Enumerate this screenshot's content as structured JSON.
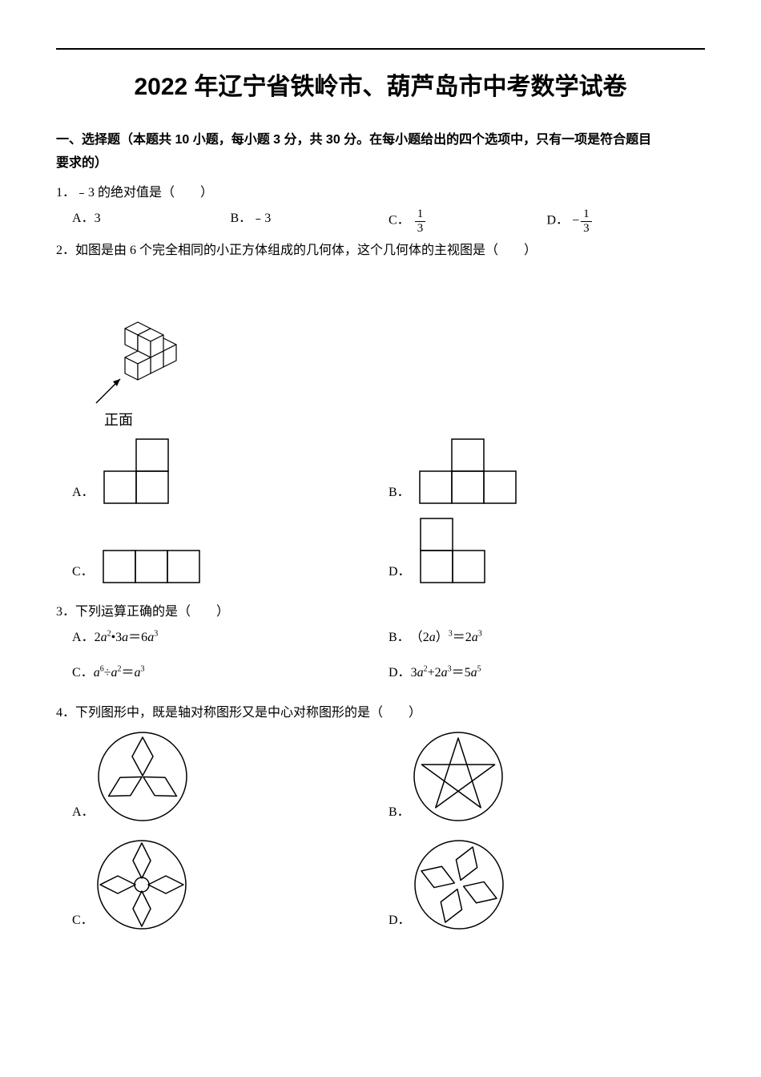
{
  "title": "2022 年辽宁省铁岭市、葫芦岛市中考数学试卷",
  "section1": {
    "heading_part1": "一、选择题（本题共 10 小题，每小题 3 分，共 30 分。在每小题给出的四个选项中，只有一项是符合题目",
    "heading_part2": "要求的）"
  },
  "q1": {
    "stem": "1．﹣3 的绝对值是（　　）",
    "A_label": "A．",
    "A_val": "3",
    "B_label": "B．",
    "B_val": "﹣3",
    "C_label": "C．",
    "C_num": "1",
    "C_den": "3",
    "D_label": "D．",
    "D_neg": "−",
    "D_num": "1",
    "D_den": "3"
  },
  "q2": {
    "stem": "2．如图是由 6 个完全相同的小正方体组成的几何体，这个几何体的主视图是（　　）",
    "front_label": "正面",
    "A": "A．",
    "B": "B．",
    "C": "C．",
    "D": "D．",
    "iso": {
      "stroke": "#000000",
      "fill": "#ffffff",
      "sw": 1.2
    },
    "grid": {
      "cell": 40,
      "stroke": "#000000",
      "sw": 1.5,
      "fill": "none"
    },
    "shapes": {
      "A": {
        "cols": 2,
        "rows": 2,
        "cells": [
          [
            1,
            0
          ],
          [
            0,
            1
          ],
          [
            1,
            1
          ]
        ]
      },
      "B": {
        "cols": 3,
        "rows": 2,
        "cells": [
          [
            1,
            0
          ],
          [
            0,
            1
          ],
          [
            1,
            1
          ],
          [
            2,
            1
          ]
        ]
      },
      "C": {
        "cols": 3,
        "rows": 1,
        "cells": [
          [
            0,
            0
          ],
          [
            1,
            0
          ],
          [
            2,
            0
          ]
        ]
      },
      "D": {
        "cols": 2,
        "rows": 2,
        "cells": [
          [
            0,
            0
          ],
          [
            0,
            1
          ],
          [
            1,
            1
          ]
        ]
      }
    }
  },
  "q3": {
    "stem": "3．下列运算正确的是（　　）",
    "A_label": "A．",
    "B_label": "B．",
    "C_label": "C．",
    "D_label": "D．",
    "A_expr": {
      "pre": "2",
      "a1": "a",
      "p1": "2",
      "mid": "•3",
      "a2": "a",
      "eq": "＝6",
      "a3": "a",
      "p3": "3"
    },
    "B_expr": {
      "pre": "（2",
      "a1": "a",
      "mid": "）",
      "p1": "3",
      "eq": "＝2",
      "a2": "a",
      "p2": "3"
    },
    "C_expr": {
      "a1": "a",
      "p1": "6",
      "op": "÷",
      "a2": "a",
      "p2": "2",
      "eq": "＝",
      "a3": "a",
      "p3": "3"
    },
    "D_expr": {
      "pre": "3",
      "a1": "a",
      "p1": "2",
      "plus": "+2",
      "a2": "a",
      "p2": "3",
      "eq": "＝5",
      "a3": "a",
      "p3": "5"
    }
  },
  "q4": {
    "stem": "4．下列图形中，既是轴对称图形又是中心对称图形的是（　　）",
    "A": "A．",
    "B": "B．",
    "C": "C．",
    "D": "D．",
    "style": {
      "r": 55,
      "stroke": "#000000",
      "sw": 1.5,
      "fill": "#ffffff"
    }
  }
}
